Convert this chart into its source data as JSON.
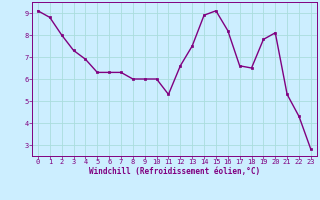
{
  "x": [
    0,
    1,
    2,
    3,
    4,
    5,
    6,
    7,
    8,
    9,
    10,
    11,
    12,
    13,
    14,
    15,
    16,
    17,
    18,
    19,
    20,
    21,
    22,
    23
  ],
  "y": [
    9.1,
    8.8,
    8.0,
    7.3,
    6.9,
    6.3,
    6.3,
    6.3,
    6.0,
    6.0,
    6.0,
    5.3,
    6.6,
    7.5,
    8.9,
    9.1,
    8.2,
    6.6,
    6.5,
    7.8,
    8.1,
    5.3,
    4.3,
    2.8
  ],
  "line_color": "#800080",
  "marker": "s",
  "markersize": 2,
  "linewidth": 1.0,
  "bg_color": "#cceeff",
  "grid_color": "#aadddd",
  "xlabel": "Windchill (Refroidissement éolien,°C)",
  "xlabel_color": "#800080",
  "tick_color": "#800080",
  "axis_color": "#800080",
  "ylim": [
    2.5,
    9.5
  ],
  "xlim": [
    -0.5,
    23.5
  ],
  "yticks": [
    3,
    4,
    5,
    6,
    7,
    8,
    9
  ],
  "xticks": [
    0,
    1,
    2,
    3,
    4,
    5,
    6,
    7,
    8,
    9,
    10,
    11,
    12,
    13,
    14,
    15,
    16,
    17,
    18,
    19,
    20,
    21,
    22,
    23
  ],
  "tick_fontsize": 5.0,
  "xlabel_fontsize": 5.5
}
